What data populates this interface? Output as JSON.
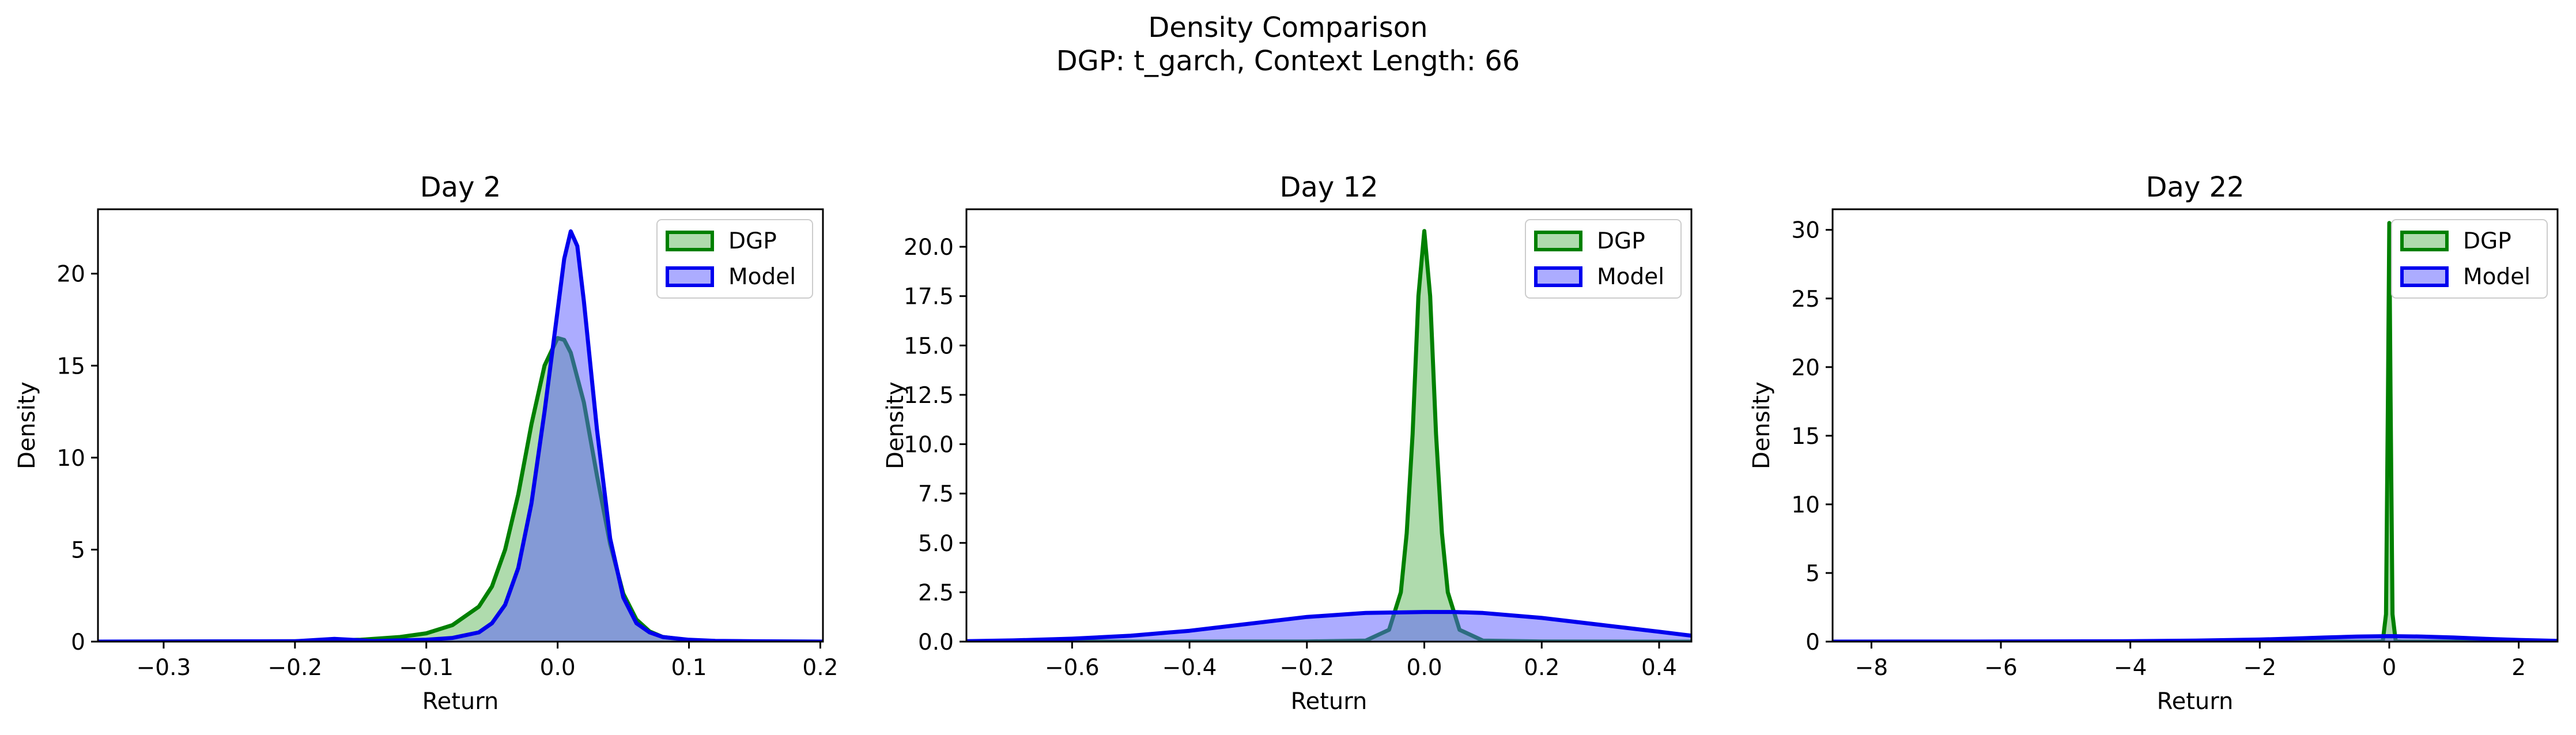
{
  "figure": {
    "title_line1": "Density Comparison",
    "title_line2": "DGP: t_garch, Context Length: 66"
  },
  "colors": {
    "dgp_line": "#008000",
    "dgp_fill": "#4daf4a",
    "model_line": "#0000ee",
    "model_fill": "#5a5aff"
  },
  "chart_data": [
    {
      "type": "area",
      "title": "Day 2",
      "xlabel": "Return",
      "ylabel": "Density",
      "xlim": [
        -0.35,
        0.202
      ],
      "ylim": [
        0,
        23.5
      ],
      "xticks": [
        -0.3,
        -0.2,
        -0.1,
        0.0,
        0.1,
        0.2
      ],
      "xtick_labels": [
        "−0.3",
        "−0.2",
        "−0.1",
        "0.0",
        "0.1",
        "0.2"
      ],
      "yticks": [
        0,
        5,
        10,
        15,
        20
      ],
      "ytick_labels": [
        "0",
        "5",
        "10",
        "15",
        "20"
      ],
      "grid": false,
      "legend": "top-right",
      "series": [
        {
          "name": "DGP",
          "color": "#008000",
          "x": [
            -0.35,
            -0.2,
            -0.15,
            -0.12,
            -0.1,
            -0.08,
            -0.06,
            -0.05,
            -0.04,
            -0.03,
            -0.02,
            -0.01,
            0.0,
            0.005,
            0.01,
            0.02,
            0.03,
            0.04,
            0.05,
            0.06,
            0.07,
            0.08,
            0.1,
            0.12,
            0.15,
            0.202
          ],
          "y": [
            0,
            0.02,
            0.1,
            0.25,
            0.45,
            0.9,
            1.9,
            3.0,
            5.0,
            8.0,
            11.8,
            15.0,
            16.5,
            16.4,
            15.7,
            13.0,
            9.0,
            5.3,
            2.6,
            1.2,
            0.55,
            0.25,
            0.08,
            0.03,
            0.01,
            0
          ]
        },
        {
          "name": "Model",
          "color": "#0000ee",
          "x": [
            -0.35,
            -0.2,
            -0.17,
            -0.14,
            -0.1,
            -0.08,
            -0.06,
            -0.05,
            -0.04,
            -0.03,
            -0.02,
            -0.01,
            0.0,
            0.005,
            0.01,
            0.015,
            0.02,
            0.03,
            0.04,
            0.05,
            0.06,
            0.07,
            0.08,
            0.1,
            0.12,
            0.15,
            0.202
          ],
          "y": [
            0,
            0.02,
            0.15,
            0.03,
            0.1,
            0.2,
            0.5,
            1.0,
            2.0,
            4.0,
            7.5,
            12.5,
            18.0,
            20.8,
            22.3,
            21.5,
            18.5,
            11.5,
            5.6,
            2.4,
            1.0,
            0.5,
            0.25,
            0.1,
            0.04,
            0.02,
            0
          ]
        }
      ]
    },
    {
      "type": "area",
      "title": "Day 12",
      "xlabel": "Return",
      "ylabel": "Density",
      "xlim": [
        -0.78,
        0.455
      ],
      "ylim": [
        0,
        21.9
      ],
      "xticks": [
        -0.6,
        -0.4,
        -0.2,
        0.0,
        0.2,
        0.4
      ],
      "xtick_labels": [
        "−0.6",
        "−0.4",
        "−0.2",
        "0.0",
        "0.2",
        "0.4"
      ],
      "yticks": [
        0,
        2.5,
        5,
        7.5,
        10,
        12.5,
        15,
        17.5,
        20
      ],
      "ytick_labels": [
        "0.0",
        "2.5",
        "5.0",
        "7.5",
        "10.0",
        "12.5",
        "15.0",
        "17.5",
        "20.0"
      ],
      "grid": false,
      "legend": "top-right",
      "series": [
        {
          "name": "DGP",
          "color": "#008000",
          "x": [
            -0.78,
            -0.2,
            -0.1,
            -0.06,
            -0.04,
            -0.03,
            -0.02,
            -0.01,
            0.0,
            0.01,
            0.02,
            0.03,
            0.04,
            0.06,
            0.1,
            0.2,
            0.455
          ],
          "y": [
            0,
            0.01,
            0.05,
            0.6,
            2.5,
            5.5,
            10.5,
            17.5,
            20.8,
            17.5,
            10.5,
            5.5,
            2.5,
            0.6,
            0.05,
            0.01,
            0
          ]
        },
        {
          "name": "Model",
          "color": "#0000ee",
          "x": [
            -0.78,
            -0.7,
            -0.6,
            -0.5,
            -0.4,
            -0.3,
            -0.2,
            -0.1,
            0.0,
            0.05,
            0.1,
            0.2,
            0.3,
            0.4,
            0.455
          ],
          "y": [
            0.02,
            0.06,
            0.15,
            0.3,
            0.55,
            0.9,
            1.25,
            1.45,
            1.5,
            1.5,
            1.45,
            1.2,
            0.85,
            0.5,
            0.3
          ]
        }
      ]
    },
    {
      "type": "area",
      "title": "Day 22",
      "xlabel": "Return",
      "ylabel": "Density",
      "xlim": [
        -8.6,
        2.6
      ],
      "ylim": [
        0,
        31.5
      ],
      "xticks": [
        -8,
        -6,
        -4,
        -2,
        0,
        2
      ],
      "xtick_labels": [
        "−8",
        "−6",
        "−4",
        "−2",
        "0",
        "2"
      ],
      "yticks": [
        0,
        5,
        10,
        15,
        20,
        25,
        30
      ],
      "ytick_labels": [
        "0",
        "5",
        "10",
        "15",
        "20",
        "25",
        "30"
      ],
      "grid": false,
      "legend": "top-right",
      "series": [
        {
          "name": "DGP",
          "color": "#008000",
          "x": [
            -8.6,
            -0.2,
            -0.1,
            -0.05,
            -0.02,
            0.0,
            0.02,
            0.05,
            0.1,
            0.2,
            2.6
          ],
          "y": [
            0,
            0,
            0.02,
            2.0,
            18.0,
            30.5,
            18.0,
            2.0,
            0.02,
            0,
            0
          ]
        },
        {
          "name": "Model",
          "color": "#0000ee",
          "x": [
            -8.6,
            -6,
            -4,
            -3,
            -2,
            -1.5,
            -1,
            -0.5,
            0,
            0.5,
            1,
            1.5,
            2,
            2.6
          ],
          "y": [
            0,
            0.01,
            0.03,
            0.07,
            0.15,
            0.22,
            0.3,
            0.37,
            0.4,
            0.37,
            0.3,
            0.2,
            0.12,
            0.05
          ]
        }
      ]
    }
  ]
}
